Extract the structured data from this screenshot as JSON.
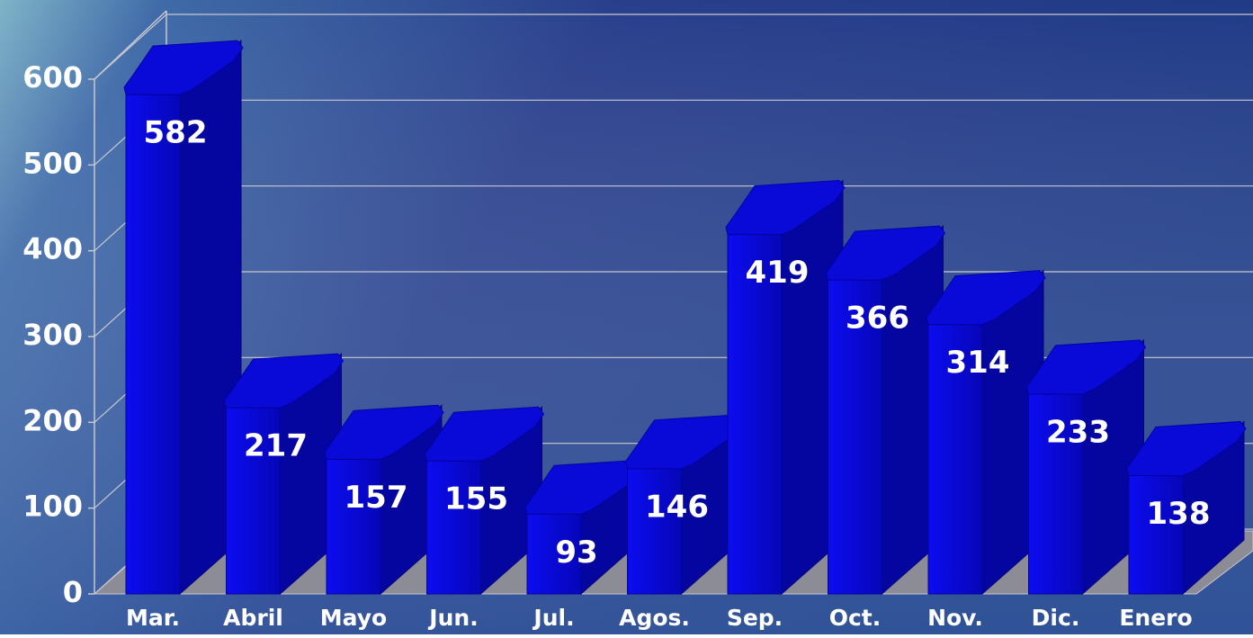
{
  "chart_data": {
    "type": "bar",
    "categories": [
      "Mar.",
      "Abril",
      "Mayo",
      "Jun.",
      "Jul.",
      "Agos.",
      "Sep.",
      "Oct.",
      "Nov.",
      "Dic.",
      "Enero"
    ],
    "values": [
      582,
      217,
      157,
      155,
      93,
      146,
      419,
      366,
      314,
      233,
      138
    ],
    "color": "#0a0ad8",
    "ylim": [
      0,
      600
    ],
    "yticks": [
      0,
      100,
      200,
      300,
      400,
      500,
      600
    ],
    "grid": true
  }
}
